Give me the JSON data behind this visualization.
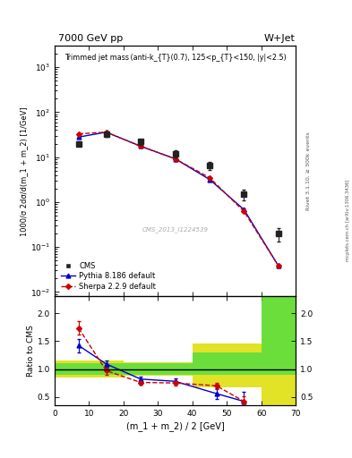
{
  "title_top": "7000 GeV pp",
  "title_right": "W+Jet",
  "plot_title": "Trimmed jet mass (anti-k_{T}(0.7), 125<p_{T}<150, |y|<2.5)",
  "ylabel_main": "1000/σ 2dσ/d(m_1 + m_2) [1/GeV]",
  "ylabel_ratio": "Ratio to CMS",
  "xlabel": "(m_1 + m_2) / 2 [GeV]",
  "watermark": "CMS_2013_I1224539",
  "rivet_label": "Rivet 3.1.10, ≥ 300k events",
  "side_label": "mcplots.cern.ch [arXiv:1306.3436]",
  "cms_x": [
    7,
    15,
    25,
    35,
    45,
    55,
    65
  ],
  "cms_y": [
    20.0,
    32.0,
    22.0,
    12.0,
    6.5,
    1.5,
    0.2
  ],
  "cms_yerr": [
    2.5,
    3.5,
    3.0,
    2.0,
    1.2,
    0.4,
    0.07
  ],
  "pythia_x": [
    7,
    15,
    25,
    35,
    45,
    55,
    65
  ],
  "pythia_y": [
    28.0,
    36.0,
    17.5,
    9.2,
    3.2,
    0.68,
    0.038
  ],
  "pythia_yerr": [
    0.5,
    0.6,
    0.3,
    0.2,
    0.1,
    0.03,
    0.003
  ],
  "sherpa_x": [
    7,
    15,
    25,
    35,
    45,
    55,
    65
  ],
  "sherpa_y": [
    33.0,
    36.0,
    17.5,
    9.2,
    3.5,
    0.62,
    0.038
  ],
  "sherpa_yerr": [
    0.6,
    0.6,
    0.3,
    0.2,
    0.1,
    0.03,
    0.003
  ],
  "ratio_pythia_x": [
    7,
    15,
    25,
    35,
    47,
    55
  ],
  "ratio_pythia_y": [
    1.42,
    1.09,
    0.82,
    0.78,
    0.56,
    0.42
  ],
  "ratio_pythia_yerr": [
    0.12,
    0.07,
    0.05,
    0.05,
    0.09,
    0.18
  ],
  "ratio_sherpa_x": [
    7,
    15,
    25,
    35,
    47,
    55
  ],
  "ratio_sherpa_y": [
    1.73,
    0.97,
    0.76,
    0.75,
    0.7,
    0.42
  ],
  "ratio_sherpa_yerr": [
    0.12,
    0.07,
    0.04,
    0.04,
    0.06,
    0.1
  ],
  "xlim": [
    0,
    70
  ],
  "ylim_main": [
    0.008,
    3000
  ],
  "ylim_ratio": [
    0.35,
    2.3
  ],
  "ratio_yticks": [
    0.5,
    1.0,
    1.5,
    2.0
  ],
  "cms_color": "#222222",
  "pythia_color": "#0000cc",
  "sherpa_color": "#cc0000",
  "band_green": "#44dd44",
  "band_yellow": "#dddd00",
  "bg_color": "#ffffff",
  "bin_edges": [
    0,
    10,
    20,
    30,
    40,
    60,
    70
  ],
  "green_low": [
    0.9,
    0.9,
    0.9,
    0.9,
    0.9,
    0.9
  ],
  "green_high": [
    1.1,
    1.1,
    1.1,
    1.1,
    1.3,
    2.3
  ],
  "yellow_low": [
    0.85,
    0.85,
    0.88,
    0.88,
    0.68,
    0.35
  ],
  "yellow_high": [
    1.15,
    1.15,
    1.12,
    1.12,
    1.45,
    2.3
  ]
}
